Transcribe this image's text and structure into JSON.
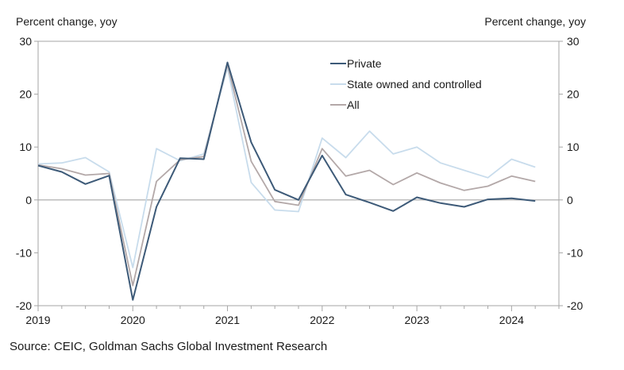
{
  "chart_data": {
    "type": "line",
    "ylabel_left": "Percent change, yoy",
    "ylabel_right": "Percent change, yoy",
    "ylim": [
      -20,
      30
    ],
    "yticks": [
      -20,
      -10,
      0,
      10,
      20,
      30
    ],
    "xlim": [
      2019.0,
      2024.5
    ],
    "xticks": [
      "2019",
      "2020",
      "2021",
      "2022",
      "2023",
      "2024"
    ],
    "legend_position": "top-center",
    "grid": false,
    "x": [
      2019.0,
      2019.25,
      2019.5,
      2019.75,
      2020.0,
      2020.25,
      2020.5,
      2020.75,
      2021.0,
      2021.25,
      2021.5,
      2021.75,
      2022.0,
      2022.25,
      2022.5,
      2022.75,
      2023.0,
      2023.25,
      2023.5,
      2023.75,
      2024.0,
      2024.25
    ],
    "series": [
      {
        "name": "Private",
        "color": "#3d5a78",
        "values": [
          6.5,
          5.3,
          3.0,
          4.6,
          -18.9,
          -1.3,
          7.9,
          7.7,
          26.0,
          10.9,
          1.9,
          0.0,
          8.4,
          1.0,
          -0.5,
          -2.1,
          0.5,
          -0.6,
          -1.3,
          0.1,
          0.3,
          -0.2
        ]
      },
      {
        "name": "State owned and controlled",
        "color": "#c8dcec",
        "values": [
          6.8,
          7.0,
          8.0,
          5.3,
          -12.8,
          9.7,
          7.4,
          8.7,
          25.0,
          3.3,
          -1.9,
          -2.2,
          11.7,
          8.0,
          13.0,
          8.7,
          10.0,
          7.0,
          5.6,
          4.2,
          7.7,
          6.2
        ]
      },
      {
        "name": "All",
        "color": "#b3a8a8",
        "values": [
          6.6,
          5.9,
          4.7,
          5.0,
          -16.2,
          3.5,
          7.6,
          8.2,
          25.6,
          7.3,
          -0.3,
          -1.0,
          9.7,
          4.5,
          5.6,
          2.9,
          5.1,
          3.2,
          1.8,
          2.6,
          4.5,
          3.5
        ]
      }
    ]
  },
  "source": "Source: CEIC, Goldman Sachs Global Investment Research"
}
